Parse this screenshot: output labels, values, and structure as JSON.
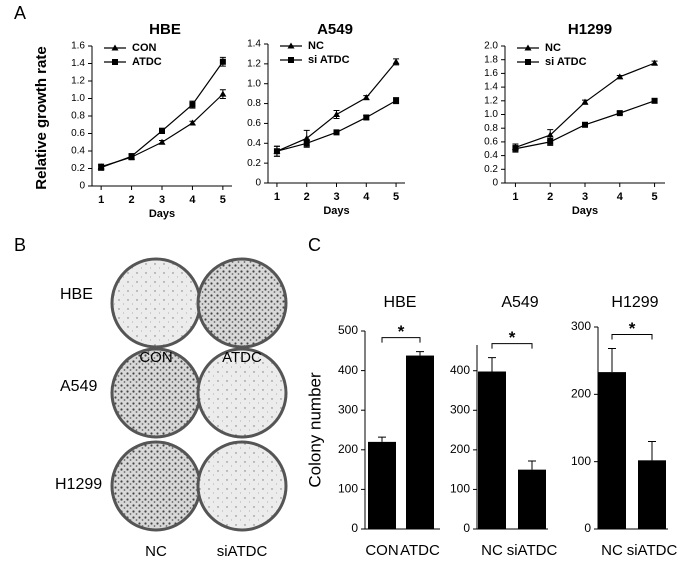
{
  "panel_labels": [
    "A",
    "B",
    "C"
  ],
  "panel_b": {
    "rows": [
      "HBE",
      "A549",
      "H1299"
    ],
    "columns_top": [
      "CON",
      "ATDC"
    ],
    "columns_bottom": [
      "NC",
      "siATDC"
    ]
  },
  "chart_data": [
    {
      "type": "line",
      "title": "HBE",
      "x_label": "Days",
      "y_label": "Relative growth rate",
      "legend": "upper left",
      "x": [
        1,
        2,
        3,
        4,
        5
      ],
      "xlim": [
        0.7,
        5.3
      ],
      "xticks": [
        1,
        2,
        3,
        4,
        5
      ],
      "ylim": [
        0,
        1.6
      ],
      "yticks": [
        0,
        0.2,
        0.4,
        0.6,
        0.8,
        {
          "value": 1,
          "label": "1.0"
        },
        1.2,
        1.4,
        1.6
      ],
      "series": [
        {
          "name": "CON",
          "marker": "triangle",
          "color": "#000000",
          "values": [
            0.22,
            0.33,
            0.5,
            0.72,
            1.05
          ],
          "errors": [
            0.03,
            0.03,
            0.02,
            0.02,
            0.05
          ]
        },
        {
          "name": "ATDC",
          "marker": "square",
          "color": "#000000",
          "values": [
            0.21,
            0.34,
            0.63,
            0.93,
            1.42
          ],
          "errors": [
            0.03,
            0.03,
            0.03,
            0.04,
            0.05
          ]
        }
      ]
    },
    {
      "type": "line",
      "title": "A549",
      "x_label": "Days",
      "legend": "upper left",
      "x": [
        1,
        2,
        3,
        4,
        5
      ],
      "xlim": [
        0.7,
        5.3
      ],
      "xticks": [
        1,
        2,
        3,
        4,
        5
      ],
      "ylim": [
        0,
        1.4
      ],
      "yticks": [
        0,
        0.2,
        0.4,
        0.6,
        0.8,
        {
          "value": 1,
          "label": "1.0"
        },
        1.2,
        1.4
      ],
      "series": [
        {
          "name": "NC",
          "marker": "triangle",
          "color": "#000000",
          "values": [
            0.32,
            0.45,
            0.69,
            0.86,
            1.22
          ],
          "errors": [
            0.05,
            0.08,
            0.04,
            0.02,
            0.03
          ]
        },
        {
          "name": "si ATDC",
          "marker": "square",
          "color": "#000000",
          "values": [
            0.32,
            0.4,
            0.51,
            0.66,
            0.83
          ],
          "errors": [
            0.05,
            0.04,
            0.02,
            0.02,
            0.03
          ]
        }
      ]
    },
    {
      "type": "line",
      "title": "H1299",
      "x_label": "Days",
      "legend": "upper left",
      "x": [
        1,
        2,
        3,
        4,
        5
      ],
      "xlim": [
        0.7,
        5.3
      ],
      "xticks": [
        1,
        2,
        3,
        4,
        5
      ],
      "ylim": [
        0,
        2
      ],
      "yticks": [
        0,
        0.2,
        0.4,
        0.6,
        0.8,
        {
          "value": 1,
          "label": "1.0"
        },
        1.2,
        1.4,
        1.6,
        1.8,
        {
          "value": 2,
          "label": "2.0"
        }
      ],
      "series": [
        {
          "name": "NC",
          "marker": "triangle",
          "color": "#000000",
          "values": [
            0.52,
            0.7,
            1.18,
            1.55,
            1.75
          ],
          "errors": [
            0.05,
            0.08,
            0.03,
            0.02,
            0.03
          ]
        },
        {
          "name": "si ATDC",
          "marker": "square",
          "color": "#000000",
          "values": [
            0.5,
            0.6,
            0.85,
            1.02,
            1.2
          ],
          "errors": [
            0.05,
            0.05,
            0.03,
            0.02,
            0.03
          ]
        }
      ]
    },
    {
      "type": "bar",
      "title": "HBE",
      "y_label": "Colony number",
      "categories": [
        "CON",
        "ATDC"
      ],
      "values": [
        220,
        438
      ],
      "errors": [
        12,
        10
      ],
      "color": "#000000",
      "ylim": [
        0,
        500
      ],
      "yticks": [
        0,
        100,
        200,
        300,
        400,
        500
      ],
      "annotation": "*"
    },
    {
      "type": "bar",
      "title": "A549",
      "categories": [
        "NC",
        "siATDC"
      ],
      "values": [
        398,
        150
      ],
      "errors": [
        35,
        22
      ],
      "color": "#000000",
      "ylim": [
        0,
        465
      ],
      "yticks": [
        0,
        100,
        200,
        300,
        400
      ],
      "annotation": "*"
    },
    {
      "type": "bar",
      "title": "H1299",
      "categories": [
        "NC",
        "siATDC"
      ],
      "values": [
        233,
        102
      ],
      "errors": [
        35,
        28
      ],
      "color": "#000000",
      "ylim": [
        0,
        300
      ],
      "yticks": [
        0,
        100,
        200,
        300
      ],
      "annotation": "*"
    }
  ]
}
